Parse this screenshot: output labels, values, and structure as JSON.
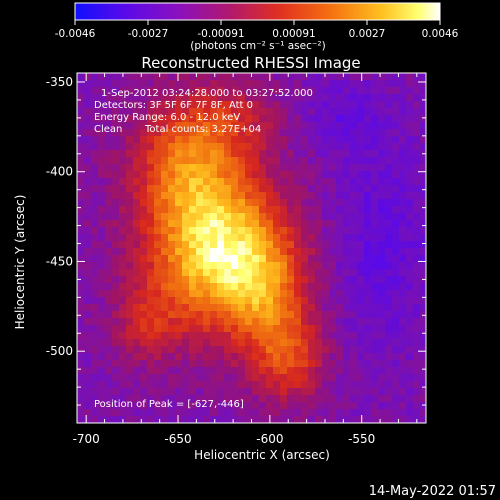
{
  "chart_data": {
    "type": "heatmap",
    "title": "Reconstructed RHESSI Image",
    "colorbar": {
      "ticks": [
        "-0.0046",
        "-0.0027",
        "-0.00091",
        "0.00091",
        "0.0027",
        "0.0046"
      ],
      "range": [
        -0.0046,
        0.0046
      ],
      "unit_label": "(photons cm⁻² s⁻¹ asec⁻²)",
      "colors": [
        "#1010ff",
        "#6a0ad8",
        "#a0108f",
        "#d02020",
        "#f06010",
        "#ffb000",
        "#ffff60",
        "#ffffff"
      ]
    },
    "annotations": {
      "time_range": "1-Sep-2012 03:24:28.000 to 03:27:52.000",
      "detectors": "Detectors: 3F 5F 6F 7F 8F, Att 0",
      "energy": "Energy Range: 6.0 - 12.0 keV",
      "clean": "Clean",
      "counts": "Total counts: 3.27E+04",
      "peak": "Position of Peak = [-627,-446]"
    },
    "xlabel": "Heliocentric X (arcsec)",
    "ylabel": "Heliocentric Y (arcsec)",
    "xticks": [
      "-700",
      "-650",
      "-600",
      "-550"
    ],
    "xtick_values": [
      -700,
      -650,
      -600,
      -550
    ],
    "yticks": [
      "-350",
      "-400",
      "-450",
      "-500"
    ],
    "ytick_values": [
      -350,
      -400,
      -450,
      -500
    ],
    "xlim": [
      -705,
      -515
    ],
    "ylim": [
      -540,
      -345
    ],
    "peak": [
      -627,
      -446
    ],
    "grid": false
  },
  "footer": {
    "timestamp": "14-May-2022 01:57"
  }
}
